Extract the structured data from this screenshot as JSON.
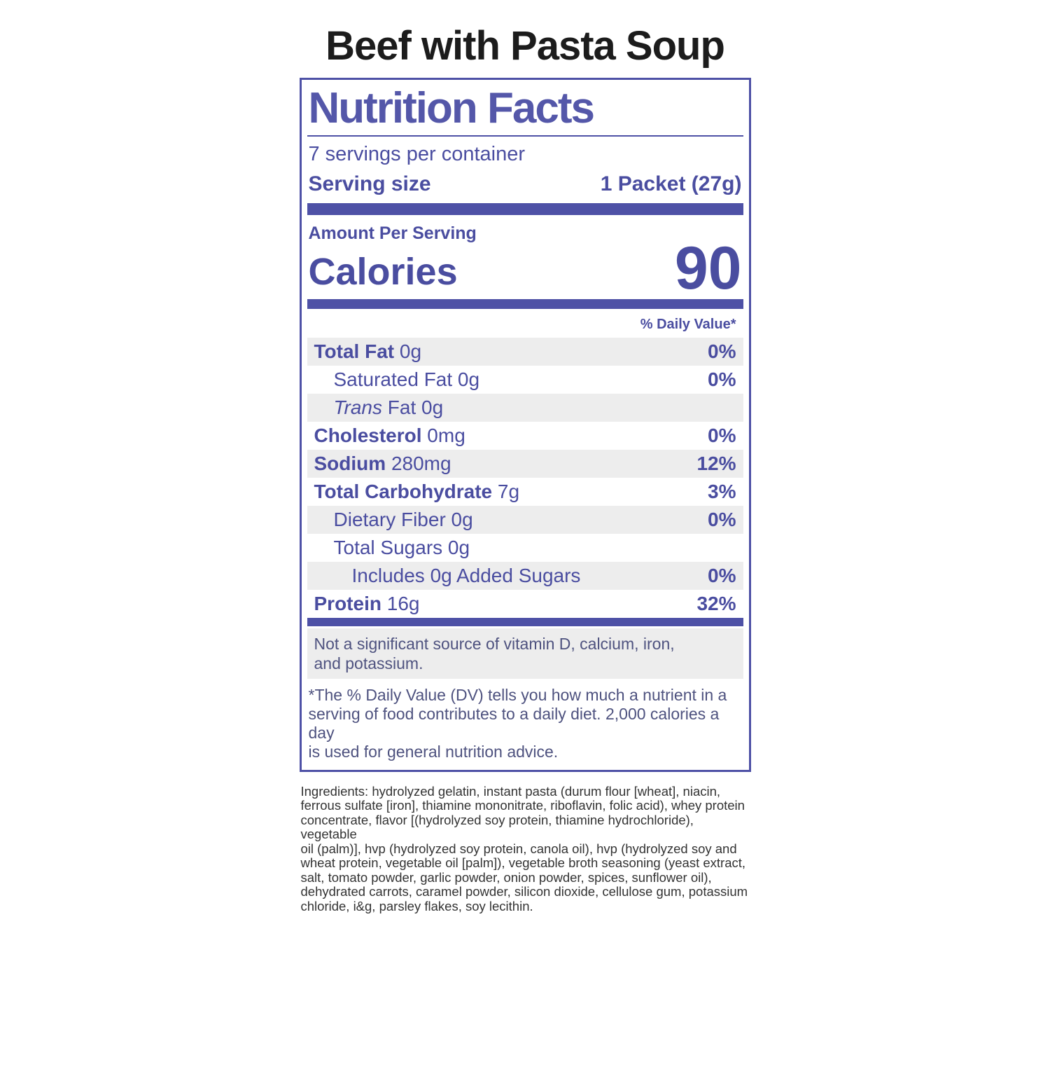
{
  "product_title": "Beef with Pasta Soup",
  "colors": {
    "accent_purple": "#4e51a6",
    "title_purple": "#5457a9",
    "muted_purple": "#4e527f",
    "row_shade_gray": "#ededed",
    "product_title_black": "#1c1c1c",
    "ingredients_gray": "#333333"
  },
  "label": {
    "title": "Nutrition Facts",
    "servings_per_container": "7 servings per container",
    "serving_size": {
      "label": "Serving size",
      "value": "1 Packet (27g)"
    },
    "amount_per_serving_label": "Amount Per Serving",
    "calories": {
      "label": "Calories",
      "value": "90"
    },
    "daily_value_header": "% Daily Value*",
    "rows": [
      {
        "name": "Total Fat",
        "amount": "0g",
        "dv": "0%",
        "bold": true,
        "italic": false,
        "indent": 0,
        "shaded": true
      },
      {
        "name": "Saturated Fat",
        "amount": "0g",
        "dv": "0%",
        "bold": false,
        "italic": false,
        "indent": 1,
        "shaded": false
      },
      {
        "name": "Trans",
        "amount": "Fat 0g",
        "dv": "",
        "bold": false,
        "italic": true,
        "indent": 1,
        "shaded": true
      },
      {
        "name": "Cholesterol",
        "amount": "0mg",
        "dv": "0%",
        "bold": true,
        "italic": false,
        "indent": 0,
        "shaded": false
      },
      {
        "name": "Sodium",
        "amount": "280mg",
        "dv": "12%",
        "bold": true,
        "italic": false,
        "indent": 0,
        "shaded": true
      },
      {
        "name": "Total Carbohydrate",
        "amount": "7g",
        "dv": "3%",
        "bold": true,
        "italic": false,
        "indent": 0,
        "shaded": false
      },
      {
        "name": "Dietary Fiber",
        "amount": "0g",
        "dv": "0%",
        "bold": false,
        "italic": false,
        "indent": 1,
        "shaded": true
      },
      {
        "name": "Total Sugars",
        "amount": "0g",
        "dv": "",
        "bold": false,
        "italic": false,
        "indent": 1,
        "shaded": false
      },
      {
        "name": "Includes 0g Added Sugars",
        "amount": "",
        "dv": "0%",
        "bold": false,
        "italic": false,
        "indent": 2,
        "shaded": true
      },
      {
        "name": "Protein",
        "amount": "16g",
        "dv": "32%",
        "bold": true,
        "italic": false,
        "indent": 0,
        "shaded": false
      }
    ],
    "note_lines": [
      "Not a significant source of vitamin D, calcium, iron,",
      "and potassium."
    ],
    "footnote_lines": [
      "*The % Daily Value (DV) tells you how much a nutrient in a",
      "serving of food contributes to a daily diet. 2,000 calories a day",
      "is used for general nutrition advice."
    ]
  },
  "ingredients_lines": [
    "Ingredients: hydrolyzed gelatin, instant pasta (durum flour [wheat], niacin,",
    "ferrous sulfate [iron], thiamine mononitrate, riboflavin, folic acid), whey protein",
    "concentrate, flavor [(hydrolyzed soy protein, thiamine hydrochloride), vegetable",
    "oil (palm)], hvp (hydrolyzed soy protein, canola oil), hvp (hydrolyzed soy and",
    "wheat protein, vegetable oil [palm]), vegetable broth seasoning (yeast extract,",
    "salt, tomato powder, garlic powder, onion powder, spices, sunflower oil),",
    "dehydrated carrots, caramel powder, silicon dioxide, cellulose gum, potassium",
    "chloride, i&g, parsley flakes, soy lecithin."
  ]
}
